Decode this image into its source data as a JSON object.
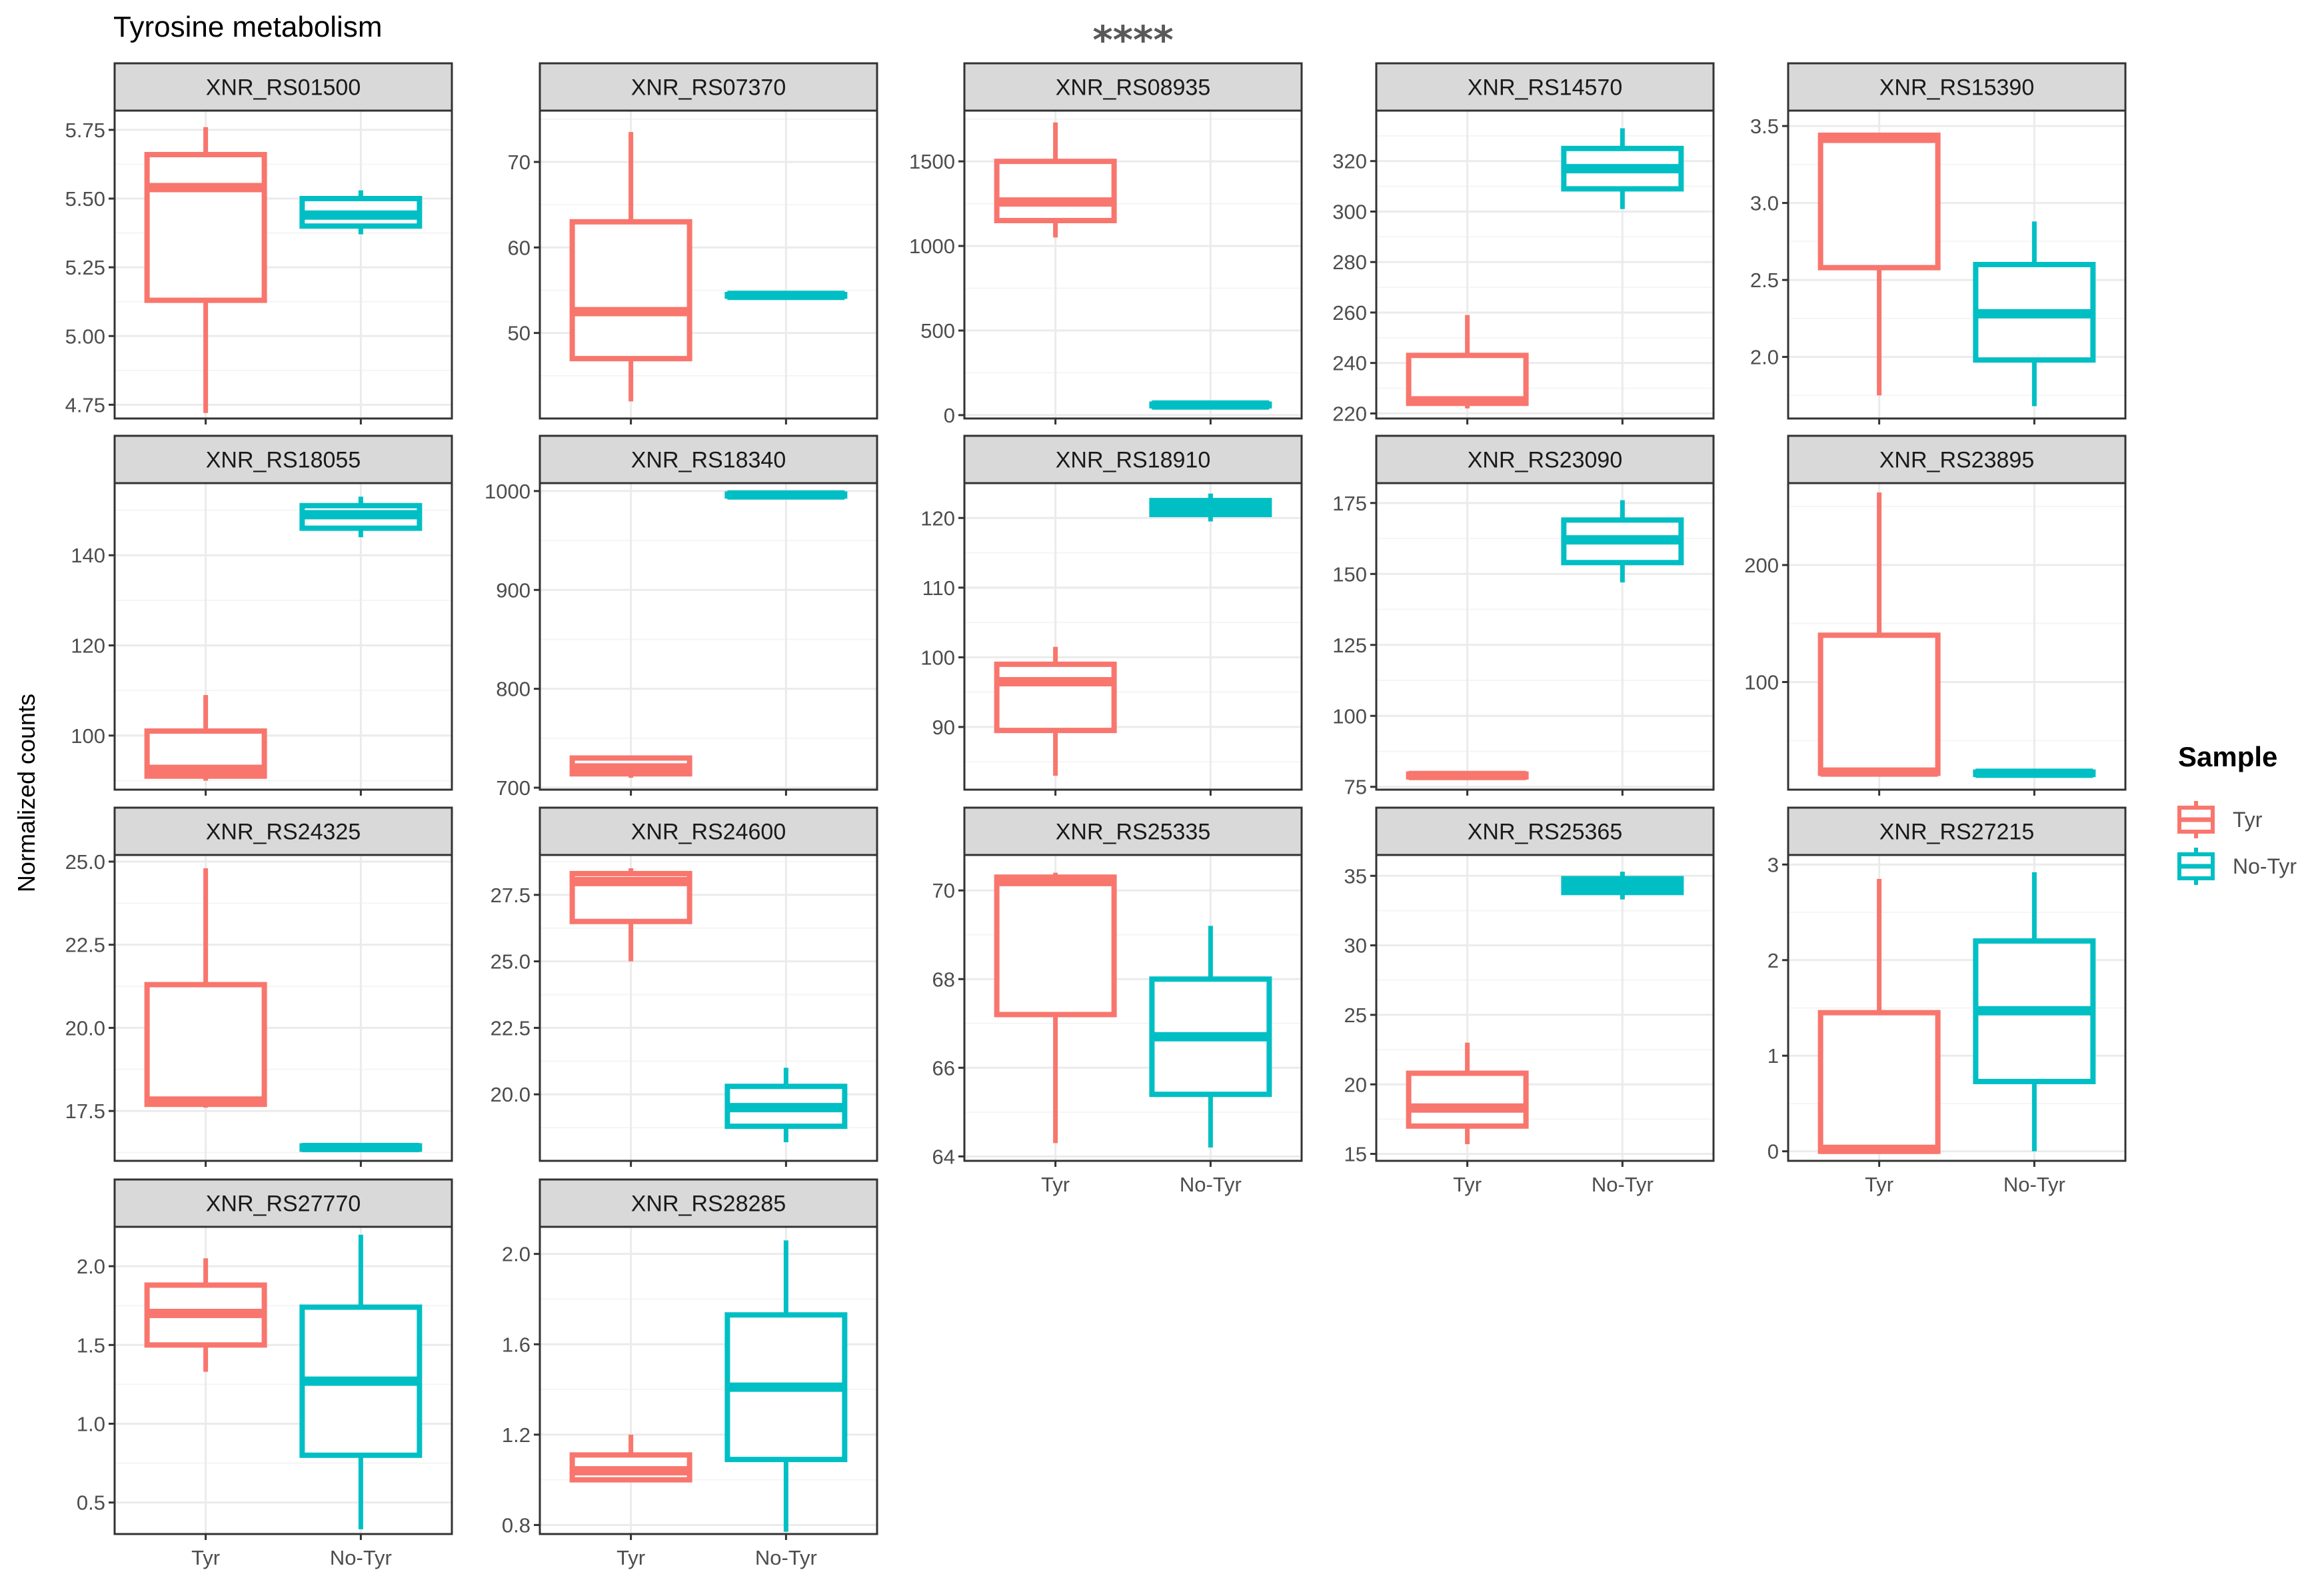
{
  "colors": {
    "Tyr": "#F8766D",
    "No-Tyr": "#00BFC4",
    "strip": "#d9d9d9",
    "grid_major": "#ebebeb",
    "grid_minor": "#f5f5f5"
  },
  "figure_title": "Tyrosine metabolism",
  "y_axis_label": "Normalized counts",
  "legend": {
    "title": "Sample",
    "items": [
      "Tyr",
      "No-Tyr"
    ]
  },
  "chart_data": {
    "type": "boxplot",
    "title": "Tyrosine metabolism",
    "ylabel": "Normalized counts",
    "xlabel": "",
    "categories": [
      "Tyr",
      "No-Tyr"
    ],
    "legend_position": "right",
    "facets": [
      {
        "name": "XNR_RS01500",
        "annotation": "",
        "ylim": [
          4.7,
          5.82
        ],
        "ticks": [
          4.75,
          5.0,
          5.25,
          5.5,
          5.75
        ],
        "tick_labels": [
          "4.75",
          "5.00",
          "5.25",
          "5.50",
          "5.75"
        ],
        "series": [
          {
            "name": "Tyr",
            "min": 4.72,
            "q1": 5.13,
            "median": 5.54,
            "q3": 5.66,
            "max": 5.76
          },
          {
            "name": "No-Tyr",
            "min": 5.37,
            "q1": 5.4,
            "median": 5.44,
            "q3": 5.5,
            "max": 5.53
          }
        ]
      },
      {
        "name": "XNR_RS07370",
        "annotation": "",
        "ylim": [
          40,
          76
        ],
        "ticks": [
          50,
          60,
          70
        ],
        "tick_labels": [
          "50",
          "60",
          "70"
        ],
        "series": [
          {
            "name": "Tyr",
            "min": 42,
            "q1": 47,
            "median": 52.5,
            "q3": 63,
            "max": 73.5
          },
          {
            "name": "No-Tyr",
            "min": 54.2,
            "q1": 54.3,
            "median": 54.4,
            "q3": 54.5,
            "max": 54.6
          }
        ]
      },
      {
        "name": "XNR_RS08935",
        "annotation": "****",
        "ylim": [
          -20,
          1800
        ],
        "ticks": [
          0,
          500,
          1000,
          1500
        ],
        "tick_labels": [
          "0",
          "500",
          "1000",
          "1500"
        ],
        "series": [
          {
            "name": "Tyr",
            "min": 1050,
            "q1": 1150,
            "median": 1260,
            "q3": 1500,
            "max": 1730
          },
          {
            "name": "No-Tyr",
            "min": 50,
            "q1": 55,
            "median": 60,
            "q3": 65,
            "max": 70
          }
        ]
      },
      {
        "name": "XNR_RS14570",
        "annotation": "",
        "ylim": [
          218,
          340
        ],
        "ticks": [
          220,
          240,
          260,
          280,
          300,
          320
        ],
        "tick_labels": [
          "220",
          "240",
          "260",
          "280",
          "300",
          "320"
        ],
        "series": [
          {
            "name": "Tyr",
            "min": 222,
            "q1": 224,
            "median": 225,
            "q3": 243,
            "max": 259
          },
          {
            "name": "No-Tyr",
            "min": 301,
            "q1": 309,
            "median": 317,
            "q3": 325,
            "max": 333
          }
        ]
      },
      {
        "name": "XNR_RS15390",
        "annotation": "",
        "ylim": [
          1.6,
          3.6
        ],
        "ticks": [
          2.0,
          2.5,
          3.0,
          3.5
        ],
        "tick_labels": [
          "2.0",
          "2.5",
          "3.0",
          "3.5"
        ],
        "series": [
          {
            "name": "Tyr",
            "min": 1.75,
            "q1": 2.58,
            "median": 3.42,
            "q3": 3.44,
            "max": 3.45
          },
          {
            "name": "No-Tyr",
            "min": 1.68,
            "q1": 1.98,
            "median": 2.28,
            "q3": 2.6,
            "max": 2.88
          }
        ]
      },
      {
        "name": "XNR_RS18055",
        "annotation": "",
        "ylim": [
          88,
          156
        ],
        "ticks": [
          100,
          120,
          140
        ],
        "tick_labels": [
          "100",
          "120",
          "140"
        ],
        "series": [
          {
            "name": "Tyr",
            "min": 90,
            "q1": 91,
            "median": 92.5,
            "q3": 101,
            "max": 109
          },
          {
            "name": "No-Tyr",
            "min": 144,
            "q1": 146,
            "median": 149,
            "q3": 151,
            "max": 153
          }
        ]
      },
      {
        "name": "XNR_RS18340",
        "annotation": "",
        "ylim": [
          698,
          1008
        ],
        "ticks": [
          700,
          800,
          900,
          1000
        ],
        "tick_labels": [
          "700",
          "800",
          "900",
          "1000"
        ],
        "series": [
          {
            "name": "Tyr",
            "min": 710,
            "q1": 714,
            "median": 720,
            "q3": 730,
            "max": 732
          },
          {
            "name": "No-Tyr",
            "min": 994,
            "q1": 995,
            "median": 996,
            "q3": 997,
            "max": 998
          }
        ]
      },
      {
        "name": "XNR_RS18910",
        "annotation": "",
        "ylim": [
          81,
          125
        ],
        "ticks": [
          90,
          100,
          110,
          120
        ],
        "tick_labels": [
          "90",
          "100",
          "110",
          "120"
        ],
        "series": [
          {
            "name": "Tyr",
            "min": 83,
            "q1": 89.5,
            "median": 96.5,
            "q3": 99,
            "max": 101.5
          },
          {
            "name": "No-Tyr",
            "min": 119.5,
            "q1": 120.5,
            "median": 121.5,
            "q3": 122.5,
            "max": 123.5
          }
        ]
      },
      {
        "name": "XNR_RS23090",
        "annotation": "",
        "ylim": [
          74,
          182
        ],
        "ticks": [
          75,
          100,
          125,
          150,
          175
        ],
        "tick_labels": [
          "75",
          "100",
          "125",
          "150",
          "175"
        ],
        "series": [
          {
            "name": "Tyr",
            "min": 78,
            "q1": 78.5,
            "median": 79,
            "q3": 79.5,
            "max": 80
          },
          {
            "name": "No-Tyr",
            "min": 147,
            "q1": 154,
            "median": 162,
            "q3": 169,
            "max": 176
          }
        ]
      },
      {
        "name": "XNR_RS23895",
        "annotation": "",
        "ylim": [
          8,
          270
        ],
        "ticks": [
          100,
          200
        ],
        "tick_labels": [
          "100",
          "200"
        ],
        "series": [
          {
            "name": "Tyr",
            "min": 20,
            "q1": 22,
            "median": 23,
            "q3": 140,
            "max": 262
          },
          {
            "name": "No-Tyr",
            "min": 20,
            "q1": 21,
            "median": 22,
            "q3": 23,
            "max": 24
          }
        ]
      },
      {
        "name": "XNR_RS24325",
        "annotation": "",
        "ylim": [
          16.0,
          25.2
        ],
        "ticks": [
          17.5,
          20.0,
          22.5,
          25.0
        ],
        "tick_labels": [
          "17.5",
          "20.0",
          "22.5",
          "25.0"
        ],
        "series": [
          {
            "name": "Tyr",
            "min": 17.6,
            "q1": 17.7,
            "median": 17.8,
            "q3": 21.3,
            "max": 24.8
          },
          {
            "name": "No-Tyr",
            "min": 16.3,
            "q1": 16.35,
            "median": 16.4,
            "q3": 16.45,
            "max": 16.5
          }
        ]
      },
      {
        "name": "XNR_RS24600",
        "annotation": "",
        "ylim": [
          17.5,
          29.0
        ],
        "ticks": [
          20.0,
          22.5,
          25.0,
          27.5
        ],
        "tick_labels": [
          "20.0",
          "22.5",
          "25.0",
          "27.5"
        ],
        "series": [
          {
            "name": "Tyr",
            "min": 25.0,
            "q1": 26.5,
            "median": 28.0,
            "q3": 28.3,
            "max": 28.5
          },
          {
            "name": "No-Tyr",
            "min": 18.2,
            "q1": 18.8,
            "median": 19.5,
            "q3": 20.3,
            "max": 21.0
          }
        ]
      },
      {
        "name": "XNR_RS25335",
        "annotation": "",
        "ylim": [
          63.9,
          70.8
        ],
        "ticks": [
          64,
          66,
          68,
          70
        ],
        "tick_labels": [
          "64",
          "66",
          "68",
          "70"
        ],
        "series": [
          {
            "name": "Tyr",
            "min": 64.3,
            "q1": 67.2,
            "median": 70.2,
            "q3": 70.3,
            "max": 70.4
          },
          {
            "name": "No-Tyr",
            "min": 64.2,
            "q1": 65.4,
            "median": 66.7,
            "q3": 68.0,
            "max": 69.2
          }
        ]
      },
      {
        "name": "XNR_RS25365",
        "annotation": "",
        "ylim": [
          14.5,
          36.5
        ],
        "ticks": [
          15,
          20,
          25,
          30,
          35
        ],
        "tick_labels": [
          "15",
          "20",
          "25",
          "30",
          "35"
        ],
        "series": [
          {
            "name": "Tyr",
            "min": 15.7,
            "q1": 17.0,
            "median": 18.3,
            "q3": 20.8,
            "max": 23.0
          },
          {
            "name": "No-Tyr",
            "min": 33.3,
            "q1": 33.8,
            "median": 34.3,
            "q3": 34.8,
            "max": 35.3
          }
        ]
      },
      {
        "name": "XNR_RS27215",
        "annotation": "",
        "ylim": [
          -0.1,
          3.1
        ],
        "ticks": [
          0,
          1,
          2,
          3
        ],
        "tick_labels": [
          "0",
          "1",
          "2",
          "3"
        ],
        "series": [
          {
            "name": "Tyr",
            "min": 0.0,
            "q1": 0.0,
            "median": 0.02,
            "q3": 1.45,
            "max": 2.85
          },
          {
            "name": "No-Tyr",
            "min": 0.0,
            "q1": 0.73,
            "median": 1.47,
            "q3": 2.2,
            "max": 2.92
          }
        ]
      },
      {
        "name": "XNR_RS27770",
        "annotation": "",
        "ylim": [
          0.3,
          2.25
        ],
        "ticks": [
          0.5,
          1.0,
          1.5,
          2.0
        ],
        "tick_labels": [
          "0.5",
          "1.0",
          "1.5",
          "2.0"
        ],
        "series": [
          {
            "name": "Tyr",
            "min": 1.33,
            "q1": 1.5,
            "median": 1.7,
            "q3": 1.88,
            "max": 2.05
          },
          {
            "name": "No-Tyr",
            "min": 0.33,
            "q1": 0.8,
            "median": 1.27,
            "q3": 1.74,
            "max": 2.2
          }
        ]
      },
      {
        "name": "XNR_RS28285",
        "annotation": "",
        "ylim": [
          0.76,
          2.12
        ],
        "ticks": [
          0.8,
          1.2,
          1.6,
          2.0
        ],
        "tick_labels": [
          "0.8",
          "1.2",
          "1.6",
          "2.0"
        ],
        "series": [
          {
            "name": "Tyr",
            "min": 0.99,
            "q1": 1.0,
            "median": 1.04,
            "q3": 1.11,
            "max": 1.2
          },
          {
            "name": "No-Tyr",
            "min": 0.77,
            "q1": 1.09,
            "median": 1.41,
            "q3": 1.73,
            "max": 2.06
          }
        ]
      }
    ]
  }
}
